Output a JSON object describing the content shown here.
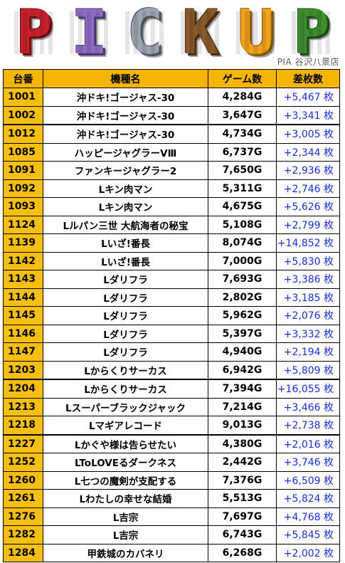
{
  "banner": {
    "letters": [
      {
        "char": "P",
        "color": "#c8202a",
        "dark": "#6e0f14"
      },
      {
        "char": "I",
        "color": "#8f6cc4",
        "dark": "#4a3575"
      },
      {
        "char": "C",
        "color": "#9aa3b0",
        "dark": "#4d5560"
      },
      {
        "char": "K",
        "color": "#8a5a2b",
        "dark": "#4a2f14"
      },
      {
        "char": "U",
        "color": "#f0a21a",
        "dark": "#8a5a08"
      },
      {
        "char": "P",
        "color": "#3d8f2e",
        "dark": "#1f4e17"
      }
    ],
    "store": "PIA 谷沢八景店"
  },
  "table": {
    "headers": [
      "台番",
      "機種名",
      "ゲーム数",
      "差枚数"
    ],
    "rows": [
      {
        "num": "1001",
        "name": "沖ドキ!ゴージャス-30",
        "games": "4,284G",
        "diff": "+5,467 枚",
        "thick": false
      },
      {
        "num": "1002",
        "name": "沖ドキ!ゴージャス-30",
        "games": "3,647G",
        "diff": "+3,341 枚",
        "thick": false
      },
      {
        "num": "1012",
        "name": "沖ドキ!ゴージャス-30",
        "games": "4,734G",
        "diff": "+3,005 枚",
        "thick": true
      },
      {
        "num": "1085",
        "name": "ハッピージャグラーVⅢ",
        "games": "6,737G",
        "diff": "+2,344 枚",
        "thick": false
      },
      {
        "num": "1091",
        "name": "ファンキージャグラー2",
        "games": "7,650G",
        "diff": "+2,936 枚",
        "thick": false
      },
      {
        "num": "1092",
        "name": "Lキン肉マン",
        "games": "5,311G",
        "diff": "+2,746 枚",
        "thick": false
      },
      {
        "num": "1093",
        "name": "Lキン肉マン",
        "games": "4,675G",
        "diff": "+5,626 枚",
        "thick": false
      },
      {
        "num": "1124",
        "name": "Lルパン三世 大航海者の秘宝",
        "games": "5,108G",
        "diff": "+2,799 枚",
        "thick": false
      },
      {
        "num": "1139",
        "name": "Lいざ!番長",
        "games": "8,074G",
        "diff": "+14,852 枚",
        "thick": false
      },
      {
        "num": "1142",
        "name": "Lいざ!番長",
        "games": "7,000G",
        "diff": "+5,830 枚",
        "thick": false
      },
      {
        "num": "1143",
        "name": "Lダリフラ",
        "games": "7,693G",
        "diff": "+3,386 枚",
        "thick": false
      },
      {
        "num": "1144",
        "name": "Lダリフラ",
        "games": "2,802G",
        "diff": "+3,185 枚",
        "thick": false
      },
      {
        "num": "1145",
        "name": "Lダリフラ",
        "games": "5,962G",
        "diff": "+2,076 枚",
        "thick": false
      },
      {
        "num": "1146",
        "name": "Lダリフラ",
        "games": "5,397G",
        "diff": "+3,332 枚",
        "thick": false
      },
      {
        "num": "1147",
        "name": "Lダリフラ",
        "games": "4,940G",
        "diff": "+2,194 枚",
        "thick": false
      },
      {
        "num": "1203",
        "name": "Lからくりサーカス",
        "games": "6,942G",
        "diff": "+5,809 枚",
        "thick": false
      },
      {
        "num": "1204",
        "name": "Lからくりサーカス",
        "games": "7,394G",
        "diff": "+16,055 枚",
        "thick": true
      },
      {
        "num": "1213",
        "name": "Lスーパーブラックジャック",
        "games": "7,214G",
        "diff": "+3,466 枚",
        "thick": false
      },
      {
        "num": "1218",
        "name": "Lマギアレコード",
        "games": "9,013G",
        "diff": "+2,738 枚",
        "thick": false
      },
      {
        "num": "1227",
        "name": "Lかぐや様は告らせたい",
        "games": "4,380G",
        "diff": "+2,016 枚",
        "thick": true
      },
      {
        "num": "1252",
        "name": "LToLOVEるダークネス",
        "games": "2,442G",
        "diff": "+3,746 枚",
        "thick": false
      },
      {
        "num": "1260",
        "name": "L七つの魔剣が支配する",
        "games": "7,376G",
        "diff": "+6,509 枚",
        "thick": false
      },
      {
        "num": "1261",
        "name": "Lわたしの幸せな結婚",
        "games": "5,513G",
        "diff": "+5,824 枚",
        "thick": false
      },
      {
        "num": "1276",
        "name": "L吉宗",
        "games": "7,697G",
        "diff": "+4,768 枚",
        "thick": false
      },
      {
        "num": "1282",
        "name": "L吉宗",
        "games": "6,743G",
        "diff": "+5,845 枚",
        "thick": false
      },
      {
        "num": "1284",
        "name": "甲鉄城のカバネリ",
        "games": "6,268G",
        "diff": "+2,002 枚",
        "thick": false
      }
    ]
  }
}
